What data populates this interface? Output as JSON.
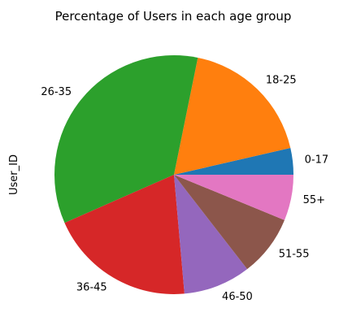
{
  "chart_data": {
    "type": "pie",
    "title": "Percentage of Users in each age group",
    "ylabel": "User_ID",
    "start_angle_deg": 0,
    "direction": "counterclockwise",
    "slices": [
      {
        "label": "0-17",
        "value": 3.6,
        "color": "#1f77b4"
      },
      {
        "label": "18-25",
        "value": 18.2,
        "color": "#ff7f0e"
      },
      {
        "label": "26-35",
        "value": 34.8,
        "color": "#2ca02c"
      },
      {
        "label": "36-45",
        "value": 19.8,
        "color": "#d62728"
      },
      {
        "label": "46-50",
        "value": 9.1,
        "color": "#9467bd"
      },
      {
        "label": "51-55",
        "value": 8.3,
        "color": "#8c564b"
      },
      {
        "label": "55+",
        "value": 6.2,
        "color": "#e377c2"
      }
    ]
  }
}
